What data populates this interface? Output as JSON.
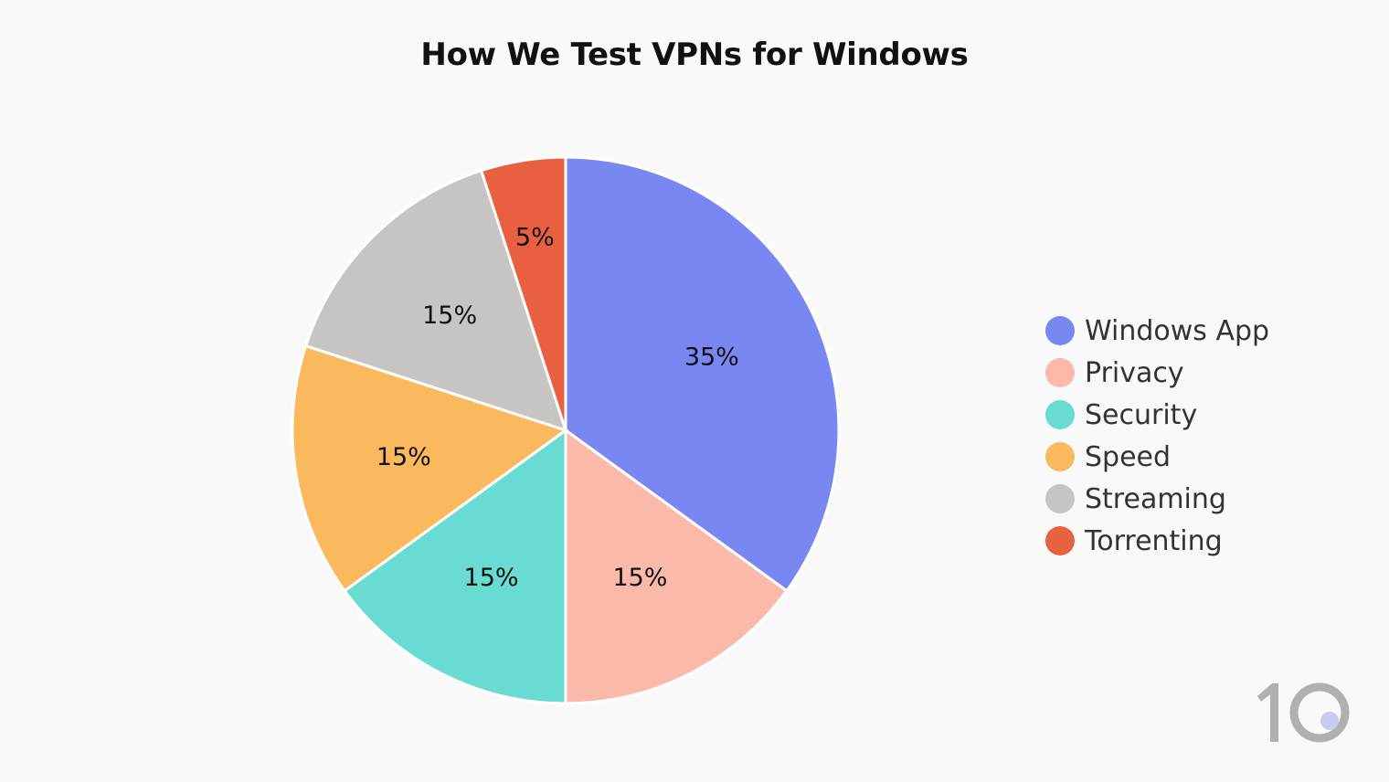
{
  "header": {
    "title": "How We Test VPNs for Windows"
  },
  "chart_data": {
    "type": "pie",
    "title": "How We Test VPNs for Windows",
    "categories": [
      "Windows App",
      "Privacy",
      "Security",
      "Speed",
      "Streaming",
      "Torrenting"
    ],
    "values": [
      35,
      15,
      15,
      15,
      15,
      5
    ],
    "labels": [
      "35%",
      "15%",
      "15%",
      "15%",
      "15%",
      "5%"
    ],
    "colors": [
      "#7887f2",
      "#fbb9aa",
      "#68dbd3",
      "#fab95d",
      "#c6c5c4",
      "#e96040"
    ],
    "legend_position": "right",
    "start_angle": "12 o'clock, clockwise"
  },
  "legend": {
    "items": [
      {
        "label": "Windows App",
        "color": "#7887f2"
      },
      {
        "label": "Privacy",
        "color": "#fbb9aa"
      },
      {
        "label": "Security",
        "color": "#68dbd3"
      },
      {
        "label": "Speed",
        "color": "#fab95d"
      },
      {
        "label": "Streaming",
        "color": "#c6c5c4"
      },
      {
        "label": "Torrenting",
        "color": "#e96040"
      }
    ]
  },
  "logo": {
    "text": "10",
    "dot_color": "#c9c9f2",
    "color": "#b0b0b0"
  }
}
